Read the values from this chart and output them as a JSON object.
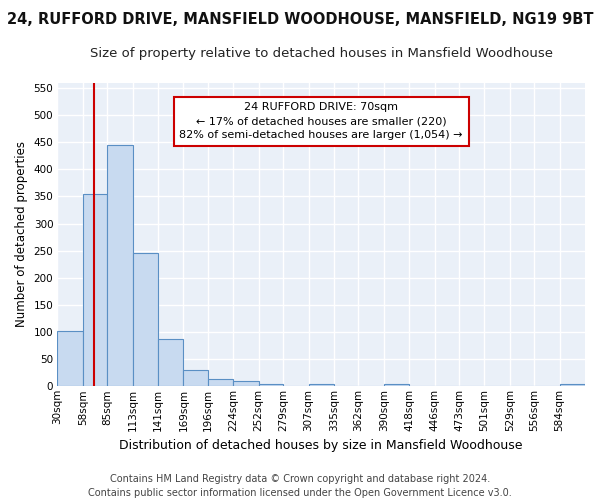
{
  "title": "24, RUFFORD DRIVE, MANSFIELD WOODHOUSE, MANSFIELD, NG19 9BT",
  "subtitle": "Size of property relative to detached houses in Mansfield Woodhouse",
  "xlabel": "Distribution of detached houses by size in Mansfield Woodhouse",
  "ylabel": "Number of detached properties",
  "footer_line1": "Contains HM Land Registry data © Crown copyright and database right 2024.",
  "footer_line2": "Contains public sector information licensed under the Open Government Licence v3.0.",
  "bin_labels": [
    "30sqm",
    "58sqm",
    "85sqm",
    "113sqm",
    "141sqm",
    "169sqm",
    "196sqm",
    "224sqm",
    "252sqm",
    "279sqm",
    "307sqm",
    "335sqm",
    "362sqm",
    "390sqm",
    "418sqm",
    "446sqm",
    "473sqm",
    "501sqm",
    "529sqm",
    "556sqm",
    "584sqm"
  ],
  "bar_values": [
    102,
    355,
    445,
    245,
    87,
    30,
    14,
    9,
    5,
    0,
    5,
    0,
    0,
    5,
    0,
    0,
    0,
    0,
    0,
    0,
    5
  ],
  "bin_edges": [
    30,
    58,
    85,
    113,
    141,
    169,
    196,
    224,
    252,
    279,
    307,
    335,
    362,
    390,
    418,
    446,
    473,
    501,
    529,
    556,
    584,
    612
  ],
  "bar_color": "#c8daf0",
  "bar_edge_color": "#5a8fc4",
  "red_line_x": 70,
  "red_line_color": "#cc0000",
  "annotation_line1": "24 RUFFORD DRIVE: 70sqm",
  "annotation_line2": "← 17% of detached houses are smaller (220)",
  "annotation_line3": "82% of semi-detached houses are larger (1,054) →",
  "annotation_box_color": "#ffffff",
  "annotation_box_edge_color": "#cc0000",
  "ylim_max": 560,
  "yticks": [
    0,
    50,
    100,
    150,
    200,
    250,
    300,
    350,
    400,
    450,
    500,
    550
  ],
  "bg_color": "#eaf0f8",
  "grid_color": "#ffffff",
  "fig_bg_color": "#ffffff",
  "title_fontsize": 10.5,
  "subtitle_fontsize": 9.5,
  "ylabel_fontsize": 8.5,
  "xlabel_fontsize": 9,
  "annotation_fontsize": 8,
  "tick_fontsize": 7.5,
  "footer_fontsize": 7
}
